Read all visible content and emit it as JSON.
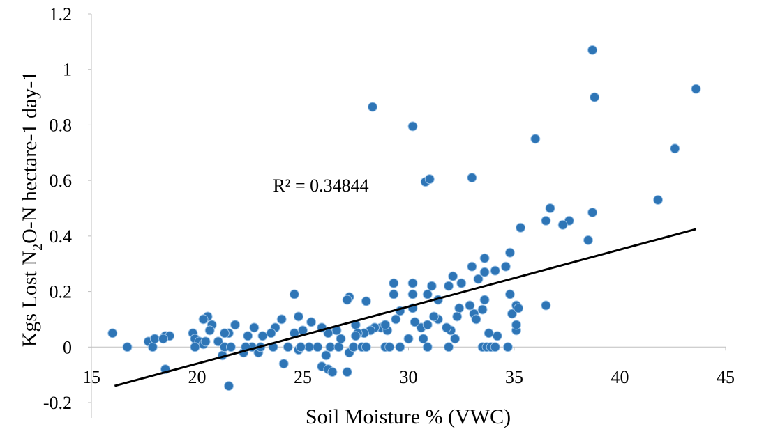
{
  "chart_data": {
    "type": "scatter",
    "x_label": "Soil Moisture % (VWC)",
    "y_label": [
      "Kgs Lost N",
      "2",
      "O-N  hectare-1 day-1"
    ],
    "annotation": "R² = 0.34844",
    "xlim": [
      15,
      45
    ],
    "xticks": [
      15,
      20,
      25,
      30,
      35,
      40,
      45
    ],
    "ylim": [
      -0.2,
      1.2
    ],
    "yticks": [
      -0.2,
      0,
      0.2,
      0.4,
      0.6,
      0.8,
      1,
      1.2
    ],
    "color": "#2e75b6",
    "trendline": {
      "color": "#000000",
      "x": [
        16.1,
        43.6
      ],
      "y": [
        -0.14,
        0.425
      ]
    },
    "x": [
      38.7,
      43.6,
      38.8,
      28.3,
      30.2,
      36.0,
      42.6,
      30.8,
      31.0,
      33.0,
      41.8,
      36.7,
      38.7,
      36.5,
      37.6,
      37.3,
      35.3,
      38.5,
      34.8,
      33.0,
      34.6,
      33.6,
      34.1,
      33.6,
      33.3,
      32.1,
      32.5,
      31.9,
      31.1,
      30.2,
      29.3,
      28.0,
      27.2,
      27.1,
      24.6,
      30.2,
      29.3,
      30.9,
      31.4,
      32.9,
      33.6,
      33.5,
      32.4,
      32.3,
      33.1,
      33.2,
      31.4,
      31.2,
      32.0,
      31.8,
      30.6,
      30.3,
      30.9,
      30.2,
      29.6,
      29.4,
      28.7,
      28.4,
      29.0,
      28.9,
      28.2,
      27.9,
      27.5,
      27.6,
      26.6,
      26.2,
      25.9,
      25.4,
      25.0,
      24.6,
      24.8,
      24.0,
      23.7,
      23.5,
      23.1,
      22.7,
      22.4,
      21.8,
      21.5,
      21.3,
      20.7,
      20.5,
      20.3,
      20.6,
      19.8,
      19.9,
      20.1,
      20.3,
      19.9,
      20.4,
      21.0,
      21.2,
      21.3,
      21.6,
      21.5,
      22.2,
      22.6,
      22.9,
      23.6,
      24.1,
      24.3,
      24.8,
      25.3,
      25.7,
      25.9,
      26.2,
      26.4,
      26.1,
      26.3,
      26.7,
      27.1,
      27.2,
      27.4,
      27.8,
      28.0,
      28.9,
      29.1,
      29.6,
      30.0,
      30.7,
      30.9,
      31.9,
      32.2,
      33.5,
      33.7,
      33.9,
      34.1,
      34.2,
      33.8,
      34.7,
      35.1,
      35.1,
      34.9,
      35.1,
      35.2,
      34.8,
      36.5,
      16.0,
      16.7,
      17.7,
      17.9,
      18.0,
      18.5,
      18.7,
      18.5,
      18.4,
      22.3,
      23.0,
      24.9,
      26.8,
      27.5
    ],
    "y": [
      1.07,
      0.93,
      0.9,
      0.865,
      0.795,
      0.75,
      0.715,
      0.595,
      0.605,
      0.61,
      0.53,
      0.5,
      0.485,
      0.455,
      0.455,
      0.44,
      0.43,
      0.385,
      0.34,
      0.29,
      0.29,
      0.32,
      0.275,
      0.27,
      0.245,
      0.255,
      0.23,
      0.22,
      0.22,
      0.23,
      0.23,
      0.165,
      0.18,
      0.17,
      0.19,
      0.19,
      0.19,
      0.19,
      0.17,
      0.15,
      0.17,
      0.135,
      0.14,
      0.11,
      0.12,
      0.1,
      0.1,
      0.11,
      0.06,
      0.07,
      0.07,
      0.09,
      0.08,
      0.14,
      0.13,
      0.1,
      0.07,
      0.07,
      0.06,
      0.08,
      0.06,
      0.05,
      0.08,
      0.05,
      0.06,
      0.05,
      0.07,
      0.09,
      0.06,
      0.05,
      0.11,
      0.1,
      0.07,
      0.05,
      0.04,
      0.07,
      0.04,
      0.08,
      0.05,
      0.05,
      0.08,
      0.11,
      0.1,
      0.06,
      0.05,
      0.03,
      0.02,
      0.01,
      0.0,
      0.02,
      0.02,
      -0.03,
      0.0,
      0.0,
      -0.14,
      -0.02,
      0.0,
      -0.02,
      0.0,
      -0.06,
      0.0,
      -0.01,
      0.0,
      0.0,
      -0.07,
      -0.08,
      -0.09,
      -0.03,
      0.0,
      0.0,
      -0.09,
      -0.02,
      0.0,
      0.0,
      0.0,
      0.0,
      0.0,
      0.0,
      0.03,
      0.03,
      0.0,
      0.0,
      0.03,
      0.0,
      0.0,
      0.0,
      0.0,
      0.04,
      0.05,
      0.0,
      0.06,
      0.08,
      0.12,
      0.15,
      0.14,
      0.19,
      0.15,
      0.05,
      0.0,
      0.02,
      0.0,
      0.03,
      0.04,
      0.04,
      -0.08,
      0.03,
      0.0,
      0.0,
      0.0,
      0.03,
      0.04
    ]
  }
}
